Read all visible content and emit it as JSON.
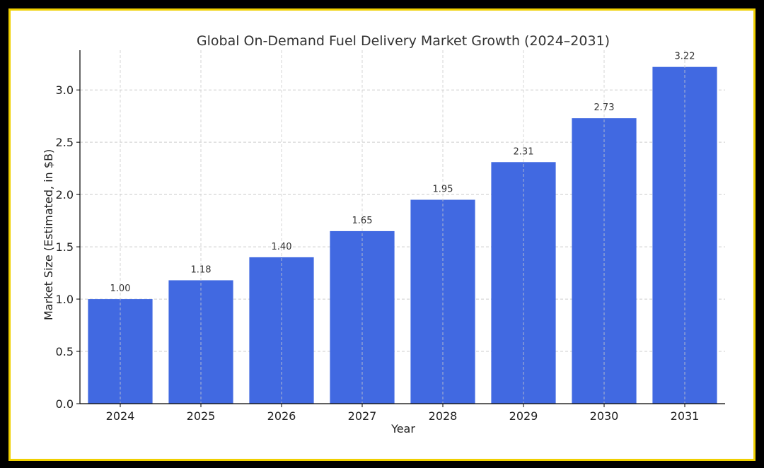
{
  "chart_data": {
    "type": "bar",
    "title": "Global On-Demand Fuel Delivery Market Growth (2024–2031)",
    "xlabel": "Year",
    "ylabel": "Market Size (Estimated, in $B)",
    "categories": [
      "2024",
      "2025",
      "2026",
      "2027",
      "2028",
      "2029",
      "2030",
      "2031"
    ],
    "values": [
      1.0,
      1.18,
      1.4,
      1.65,
      1.95,
      2.31,
      2.73,
      3.22
    ],
    "data_labels": [
      "1.00",
      "1.18",
      "1.40",
      "1.65",
      "1.95",
      "2.31",
      "2.73",
      "3.22"
    ],
    "ylim": [
      0,
      3.38
    ],
    "yticks": [
      0.0,
      0.5,
      1.0,
      1.5,
      2.0,
      2.5,
      3.0
    ],
    "ytick_labels": [
      "0.0",
      "0.5",
      "1.0",
      "1.5",
      "2.0",
      "2.5",
      "3.0"
    ],
    "grid": true,
    "colors": {
      "bar": "#4169e1",
      "grid": "#cccccc",
      "axis": "#000000",
      "frame_border": "#f0d000"
    }
  }
}
